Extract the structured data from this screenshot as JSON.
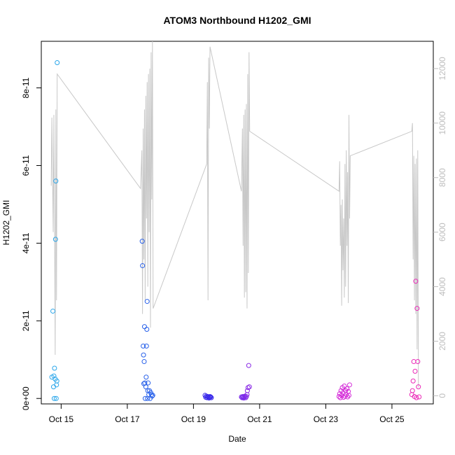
{
  "chart_data": {
    "type": "scatter",
    "title": "ATOM3 Northbound H1202_GMI",
    "xlabel": "Date",
    "ylabel": "H1202_GMI",
    "x_ticks": [
      {
        "day": 15,
        "label": "Oct 15"
      },
      {
        "day": 17,
        "label": "Oct 17"
      },
      {
        "day": 19,
        "label": "Oct 19"
      },
      {
        "day": 21,
        "label": "Oct 21"
      },
      {
        "day": 23,
        "label": "Oct 23"
      },
      {
        "day": 25,
        "label": "Oct 25"
      }
    ],
    "xlim": [
      14.4,
      26.25
    ],
    "y_left_ticks": [
      {
        "value": 0,
        "label": "0e+00"
      },
      {
        "value": 2e-11,
        "label": "2e-11"
      },
      {
        "value": 4e-11,
        "label": "4e-11"
      },
      {
        "value": 6e-11,
        "label": "6e-11"
      },
      {
        "value": 8e-11,
        "label": "8e-11"
      }
    ],
    "ylim_left": [
      -1.4e-12,
      9.2e-11
    ],
    "y_right_ticks": [
      {
        "value": 0,
        "label": "0"
      },
      {
        "value": 2000,
        "label": "2000"
      },
      {
        "value": 4000,
        "label": "4000"
      },
      {
        "value": 6000,
        "label": "6000"
      },
      {
        "value": 8000,
        "label": "8000"
      },
      {
        "value": 10000,
        "label": "10000"
      },
      {
        "value": 12000,
        "label": "12000"
      }
    ],
    "ylim_right": [
      -300,
      13000
    ],
    "series": [
      {
        "kind": "points",
        "axis": "left",
        "points": [
          [
            14.72,
            5.5e-12,
            "#2aa6ea"
          ],
          [
            14.75,
            2.25e-11,
            "#2aa6ea"
          ],
          [
            14.77,
            3e-12,
            "#2aa6ea"
          ],
          [
            14.78,
            5.8e-12,
            "#2aa6ea"
          ],
          [
            14.79,
            0,
            "#2aa6ea"
          ],
          [
            14.8,
            7.8e-12,
            "#2aa6ea"
          ],
          [
            14.82,
            5e-12,
            "#2aa6ea"
          ],
          [
            14.83,
            4.1e-11,
            "#2aa6ea"
          ],
          [
            14.84,
            5.6e-11,
            "#2aa6ea"
          ],
          [
            14.85,
            0,
            "#2aa6ea"
          ],
          [
            14.86,
            3.5e-12,
            "#2aa6ea"
          ],
          [
            14.87,
            4.5e-12,
            "#2aa6ea"
          ],
          [
            14.88,
            8.65e-11,
            "#2aa6ea"
          ],
          [
            17.45,
            4.05e-11,
            "#2a62ea"
          ],
          [
            17.46,
            3.42e-11,
            "#2a62ea"
          ],
          [
            17.48,
            1.35e-11,
            "#2a62ea"
          ],
          [
            17.49,
            1.12e-11,
            "#2a62ea"
          ],
          [
            17.5,
            3.8e-12,
            "#2a62ea"
          ],
          [
            17.51,
            9.5e-12,
            "#2a62ea"
          ],
          [
            17.52,
            1.85e-11,
            "#2a62ea"
          ],
          [
            17.53,
            4e-12,
            "#2a62ea"
          ],
          [
            17.54,
            0,
            "#2a62ea"
          ],
          [
            17.56,
            3e-12,
            "#2a62ea"
          ],
          [
            17.57,
            5.5e-12,
            "#2a62ea"
          ],
          [
            17.58,
            1.35e-11,
            "#2a62ea"
          ],
          [
            17.59,
            1.78e-11,
            "#2a62ea"
          ],
          [
            17.6,
            2.5e-11,
            "#2a62ea"
          ],
          [
            17.61,
            0,
            "#2a62ea"
          ],
          [
            17.62,
            2e-12,
            "#2a62ea"
          ],
          [
            17.63,
            4e-12,
            "#2a62ea"
          ],
          [
            17.65,
            1e-12,
            "#2a62ea"
          ],
          [
            17.67,
            2e-12,
            "#2a62ea"
          ],
          [
            17.69,
            0,
            "#2a62ea"
          ],
          [
            17.71,
            1.5e-12,
            "#2a62ea"
          ],
          [
            17.73,
            1e-12,
            "#2a62ea"
          ],
          [
            17.75,
            6e-13,
            "#2a62ea"
          ],
          [
            17.77,
            8e-13,
            "#2a62ea"
          ],
          [
            19.35,
            8e-13,
            "#3a2aea"
          ],
          [
            19.37,
            3e-13,
            "#3a2aea"
          ],
          [
            19.39,
            6e-13,
            "#3a2aea"
          ],
          [
            19.41,
            2e-13,
            "#3a2aea"
          ],
          [
            19.43,
            5e-13,
            "#3a2aea"
          ],
          [
            19.45,
            4e-13,
            "#3a2aea"
          ],
          [
            19.47,
            1e-13,
            "#3a2aea"
          ],
          [
            19.49,
            3e-13,
            "#3a2aea"
          ],
          [
            19.5,
            5e-13,
            "#3a2aea"
          ],
          [
            19.52,
            4e-13,
            "#3a2aea"
          ],
          [
            19.54,
            2e-13,
            "#3a2aea"
          ],
          [
            20.45,
            4e-13,
            "#7a2aea"
          ],
          [
            20.47,
            2e-13,
            "#7a2aea"
          ],
          [
            20.49,
            5e-13,
            "#7a2aea"
          ],
          [
            20.5,
            3e-13,
            "#7a2aea"
          ],
          [
            20.52,
            1e-13,
            "#7a2aea"
          ],
          [
            20.54,
            4e-13,
            "#7a2aea"
          ],
          [
            20.56,
            6e-13,
            "#7a2aea"
          ],
          [
            20.58,
            2e-13,
            "#7a2aea"
          ],
          [
            20.6,
            5e-13,
            "#8a2ae6"
          ],
          [
            20.62,
            1e-12,
            "#8a2ae6"
          ],
          [
            20.63,
            2e-12,
            "#8a2ae6"
          ],
          [
            20.65,
            2.8e-12,
            "#8a2ae6"
          ],
          [
            20.67,
            8.5e-12,
            "#8a2ae6"
          ],
          [
            20.69,
            3e-12,
            "#8a2ae6"
          ],
          [
            23.4,
            5e-13,
            "#d42ad8"
          ],
          [
            23.42,
            1.2e-12,
            "#d42ad8"
          ],
          [
            23.44,
            2e-13,
            "#d42ad8"
          ],
          [
            23.46,
            2e-12,
            "#d42ad8"
          ],
          [
            23.48,
            8e-13,
            "#d42ad8"
          ],
          [
            23.5,
            2.8e-12,
            "#d42ad8"
          ],
          [
            23.52,
            1.5e-12,
            "#d42ad8"
          ],
          [
            23.54,
            3e-13,
            "#d42ad8"
          ],
          [
            23.56,
            3.2e-12,
            "#d42ad8"
          ],
          [
            23.58,
            6e-13,
            "#d42ad8"
          ],
          [
            23.6,
            2e-12,
            "#d42ad8"
          ],
          [
            23.62,
            1e-12,
            "#d42ad8"
          ],
          [
            23.64,
            2.5e-12,
            "#d42ad8"
          ],
          [
            23.66,
            4e-13,
            "#d42ad8"
          ],
          [
            23.68,
            1.8e-12,
            "#d42ad8"
          ],
          [
            23.7,
            8e-13,
            "#d42ad8"
          ],
          [
            23.72,
            3.5e-12,
            "#d42ad8"
          ],
          [
            25.6,
            1e-12,
            "#ea2ab8"
          ],
          [
            25.62,
            2e-12,
            "#ea2ab8"
          ],
          [
            25.64,
            4.5e-12,
            "#ea2ab8"
          ],
          [
            25.66,
            9.5e-12,
            "#ea2ab8"
          ],
          [
            25.68,
            5e-13,
            "#ea2ab8"
          ],
          [
            25.7,
            7e-12,
            "#ea2ab8"
          ],
          [
            25.72,
            3.02e-11,
            "#ea2ab8"
          ],
          [
            25.74,
            2e-13,
            "#ea2ab8"
          ],
          [
            25.76,
            2.32e-11,
            "#ea2ab8"
          ],
          [
            25.78,
            9.5e-12,
            "#ea2ab8"
          ],
          [
            25.8,
            3e-12,
            "#ea2ab8"
          ],
          [
            25.82,
            4e-13,
            "#ea2ab8"
          ]
        ]
      },
      {
        "kind": "line",
        "axis": "right",
        "color": "#c8c8c8",
        "points": [
          [
            14.7,
            7700
          ],
          [
            14.72,
            10200
          ],
          [
            14.74,
            8000
          ],
          [
            14.76,
            6000
          ],
          [
            14.78,
            10300
          ],
          [
            14.8,
            6500
          ],
          [
            14.82,
            1500
          ],
          [
            14.84,
            10500
          ],
          [
            14.86,
            3500
          ],
          [
            14.88,
            11800
          ],
          [
            17.4,
            7600
          ],
          [
            17.44,
            9000
          ],
          [
            17.46,
            3000
          ],
          [
            17.48,
            9800
          ],
          [
            17.5,
            5000
          ],
          [
            17.52,
            10500
          ],
          [
            17.54,
            3500
          ],
          [
            17.56,
            11000
          ],
          [
            17.58,
            6500
          ],
          [
            17.6,
            11500
          ],
          [
            17.62,
            4000
          ],
          [
            17.64,
            11800
          ],
          [
            17.66,
            6000
          ],
          [
            17.68,
            12000
          ],
          [
            17.7,
            2500
          ],
          [
            17.72,
            12600
          ],
          [
            17.74,
            7200
          ],
          [
            17.76,
            13000
          ],
          [
            17.78,
            3200
          ],
          [
            19.4,
            8500
          ],
          [
            19.42,
            11500
          ],
          [
            19.44,
            3500
          ],
          [
            19.46,
            12400
          ],
          [
            19.48,
            9800
          ],
          [
            19.5,
            12800
          ],
          [
            20.45,
            7500
          ],
          [
            20.48,
            9800
          ],
          [
            20.5,
            5500
          ],
          [
            20.52,
            10300
          ],
          [
            20.54,
            3600
          ],
          [
            20.56,
            10500
          ],
          [
            20.58,
            3800
          ],
          [
            20.6,
            10700
          ],
          [
            20.62,
            3200
          ],
          [
            20.64,
            11800
          ],
          [
            20.66,
            4500
          ],
          [
            20.68,
            12600
          ],
          [
            20.7,
            9700
          ],
          [
            23.4,
            7500
          ],
          [
            23.42,
            8600
          ],
          [
            23.44,
            5500
          ],
          [
            23.46,
            7000
          ],
          [
            23.48,
            3300
          ],
          [
            23.5,
            7200
          ],
          [
            23.52,
            4600
          ],
          [
            23.54,
            6500
          ],
          [
            23.56,
            3600
          ],
          [
            23.58,
            8500
          ],
          [
            23.6,
            4000
          ],
          [
            23.62,
            9000
          ],
          [
            23.64,
            5500
          ],
          [
            23.66,
            8200
          ],
          [
            23.68,
            3400
          ],
          [
            23.7,
            10300
          ],
          [
            23.72,
            6500
          ],
          [
            23.74,
            8800
          ],
          [
            25.6,
            9700
          ],
          [
            25.62,
            10000
          ],
          [
            25.64,
            5000
          ],
          [
            25.66,
            8800
          ],
          [
            25.68,
            3500
          ],
          [
            25.7,
            8500
          ],
          [
            25.72,
            3000
          ],
          [
            25.74,
            8700
          ],
          [
            25.76,
            1700
          ],
          [
            25.78,
            9000
          ],
          [
            25.8,
            300
          ]
        ]
      }
    ]
  }
}
